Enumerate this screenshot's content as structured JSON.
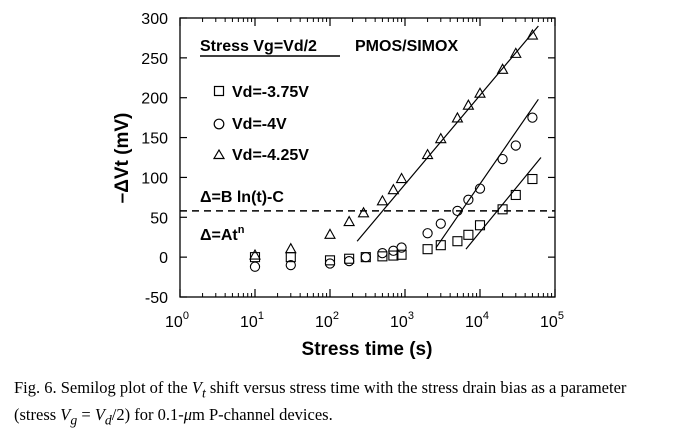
{
  "chart_data": {
    "type": "scatter",
    "x_scale": "log",
    "xlim": [
      1,
      100000
    ],
    "ylim": [
      -50,
      300
    ],
    "ylabel": "–ΔVt (mV)",
    "xlabel": "Stress time (s)",
    "x_ticks": [
      {
        "value": 1,
        "base": "10",
        "exp": "0"
      },
      {
        "value": 10,
        "base": "10",
        "exp": "1"
      },
      {
        "value": 100,
        "base": "10",
        "exp": "2"
      },
      {
        "value": 1000,
        "base": "10",
        "exp": "3"
      },
      {
        "value": 10000,
        "base": "10",
        "exp": "4"
      },
      {
        "value": 100000,
        "base": "10",
        "exp": "5"
      }
    ],
    "y_ticks": [
      300,
      250,
      200,
      150,
      100,
      50,
      0,
      -50
    ],
    "grid": false,
    "series": [
      {
        "name": "Vd=-3.75V",
        "marker": "square",
        "points": [
          [
            10,
            0
          ],
          [
            30,
            0
          ],
          [
            100,
            -4
          ],
          [
            180,
            -2
          ],
          [
            300,
            0
          ],
          [
            500,
            1
          ],
          [
            700,
            2
          ],
          [
            900,
            3
          ],
          [
            2000,
            10
          ],
          [
            3000,
            15
          ],
          [
            5000,
            20
          ],
          [
            7000,
            28
          ],
          [
            10000,
            40
          ],
          [
            20000,
            60
          ],
          [
            30000,
            78
          ],
          [
            50000,
            98
          ]
        ]
      },
      {
        "name": "Vd=-4V",
        "marker": "circle",
        "points": [
          [
            10,
            -12
          ],
          [
            30,
            -10
          ],
          [
            100,
            -8
          ],
          [
            180,
            -5
          ],
          [
            300,
            0
          ],
          [
            500,
            5
          ],
          [
            700,
            8
          ],
          [
            900,
            12
          ],
          [
            2000,
            30
          ],
          [
            3000,
            42
          ],
          [
            5000,
            58
          ],
          [
            7000,
            72
          ],
          [
            10000,
            86
          ],
          [
            20000,
            123
          ],
          [
            30000,
            140
          ],
          [
            50000,
            175
          ]
        ]
      },
      {
        "name": "Vd=-4.25V",
        "marker": "triangle",
        "points": [
          [
            10,
            2
          ],
          [
            30,
            10
          ],
          [
            100,
            28
          ],
          [
            180,
            44
          ],
          [
            280,
            55
          ],
          [
            500,
            70
          ],
          [
            700,
            84
          ],
          [
            900,
            98
          ],
          [
            2000,
            128
          ],
          [
            3000,
            148
          ],
          [
            5000,
            174
          ],
          [
            7000,
            190
          ],
          [
            10000,
            205
          ],
          [
            20000,
            235
          ],
          [
            30000,
            255
          ],
          [
            50000,
            278
          ]
        ]
      }
    ],
    "fit_lines": [
      {
        "series": "Vd=-3.75V",
        "from": [
          6500,
          10
        ],
        "to": [
          65000,
          125
        ]
      },
      {
        "series": "Vd=-4V",
        "from": [
          2600,
          12
        ],
        "to": [
          60000,
          198
        ]
      },
      {
        "series": "Vd=-4.25V",
        "from": [
          230,
          20
        ],
        "to": [
          60000,
          290
        ]
      }
    ],
    "reference_line": {
      "y": 58,
      "style": "dashed"
    },
    "annotations": {
      "stress": "Stress Vg=Vd/2",
      "device": "PMOS/SIMOX",
      "fit_formula": "Δ=B ln(t)-C",
      "power_formula_base": "Δ=At",
      "power_formula_exp": "n"
    }
  },
  "caption": {
    "p1": "Fig. 6.   Semilog plot of the ",
    "v1": "V",
    "v1sub": "t",
    "p2": " shift versus stress time with the stress drain bias as a parameter (stress ",
    "v2": "V",
    "v2sub": "g",
    "p3": " = ",
    "v3": "V",
    "v3sub": "d",
    "p4": "/2) for 0.1-",
    "mu": "μ",
    "p5": "m P-channel devices."
  }
}
